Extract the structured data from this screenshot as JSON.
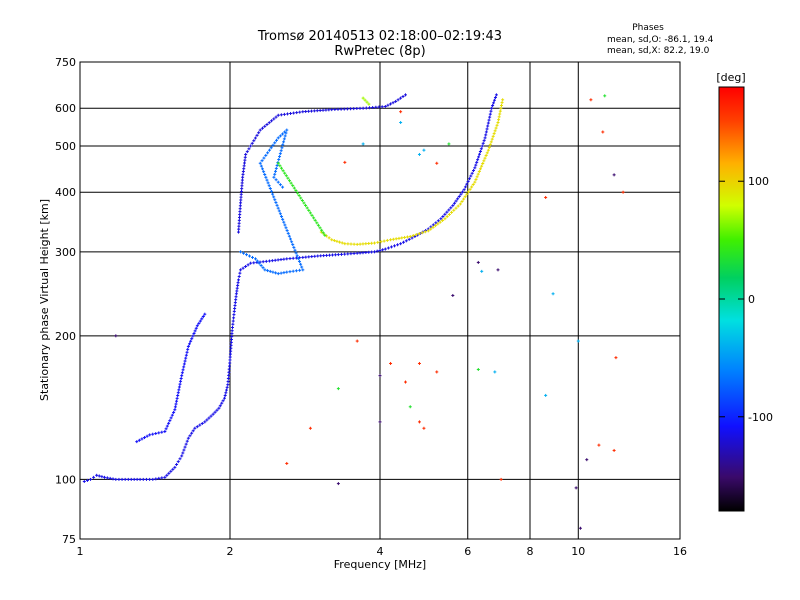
{
  "chart_data": {
    "type": "scatter",
    "title": "Tromsø 20140513 02:18:00–02:19:43",
    "subtitle": "RwPretec (8p)",
    "xlabel": "Frequency [MHz]",
    "ylabel": "Stationary phase Virtual Height [km]",
    "x_scale": "log",
    "y_scale": "log",
    "xlim": [
      1,
      16
    ],
    "ylim": [
      75,
      750
    ],
    "x_ticks": [
      "1",
      "2",
      "4",
      "6",
      "8",
      "10",
      "16"
    ],
    "x_tick_values": [
      1,
      2,
      4,
      6,
      8,
      10,
      16
    ],
    "y_ticks": [
      "75",
      "100",
      "200",
      "300",
      "400",
      "500",
      "600",
      "750"
    ],
    "y_tick_values": [
      75,
      100,
      200,
      300,
      400,
      500,
      600,
      750
    ],
    "grid": true,
    "stats": {
      "header": "Phases",
      "line1": "mean, sd,O: -86.1, 19.4",
      "line2": "mean, sd,X:  82.2, 19.0"
    },
    "colorbar": {
      "label": "[deg]",
      "range": [
        -180,
        180
      ],
      "ticks": [
        "100",
        "0",
        "-100"
      ],
      "tick_values": [
        100,
        0,
        -100
      ]
    },
    "series": [
      {
        "name": "O",
        "colorRef": "phase",
        "segments": [
          {
            "phase": -115,
            "points": [
              [
                1.02,
                99
              ],
              [
                1.05,
                100
              ],
              [
                1.08,
                102
              ],
              [
                1.12,
                101
              ],
              [
                1.18,
                100
              ],
              [
                1.25,
                100
              ],
              [
                1.32,
                100
              ],
              [
                1.4,
                100
              ],
              [
                1.48,
                101
              ],
              [
                1.55,
                106
              ],
              [
                1.6,
                112
              ],
              [
                1.65,
                122
              ],
              [
                1.7,
                128
              ],
              [
                1.78,
                132
              ],
              [
                1.85,
                137
              ],
              [
                1.9,
                141
              ],
              [
                1.95,
                148
              ],
              [
                1.98,
                158
              ],
              [
                2.0,
                178
              ],
              [
                2.02,
                205
              ],
              [
                2.04,
                225
              ],
              [
                2.06,
                245
              ],
              [
                2.08,
                262
              ],
              [
                2.1,
                275
              ],
              [
                2.2,
                284
              ],
              [
                2.4,
                287
              ],
              [
                2.6,
                290
              ],
              [
                2.8,
                292
              ],
              [
                3.0,
                294
              ],
              [
                3.3,
                296
              ],
              [
                3.6,
                298
              ],
              [
                3.9,
                300
              ],
              [
                4.1,
                304
              ],
              [
                4.4,
                312
              ],
              [
                4.7,
                323
              ],
              [
                5.0,
                335
              ],
              [
                5.3,
                352
              ],
              [
                5.6,
                375
              ],
              [
                5.9,
                405
              ],
              [
                6.2,
                450
              ],
              [
                6.5,
                520
              ],
              [
                6.7,
                600
              ],
              [
                6.85,
                640
              ]
            ]
          },
          {
            "phase": -118,
            "points": [
              [
                2.08,
                330
              ],
              [
                2.1,
                380
              ],
              [
                2.12,
                430
              ],
              [
                2.15,
                480
              ],
              [
                2.2,
                500
              ],
              [
                2.3,
                540
              ],
              [
                2.5,
                580
              ],
              [
                2.8,
                590
              ],
              [
                3.2,
                596
              ],
              [
                3.7,
                600
              ],
              [
                4.1,
                605
              ],
              [
                4.3,
                620
              ],
              [
                4.5,
                640
              ]
            ]
          },
          {
            "phase": -110,
            "points": [
              [
                1.3,
                120
              ],
              [
                1.38,
                124
              ],
              [
                1.48,
                126
              ],
              [
                1.55,
                140
              ],
              [
                1.6,
                165
              ],
              [
                1.65,
                190
              ],
              [
                1.72,
                210
              ],
              [
                1.78,
                222
              ]
            ]
          },
          {
            "phase": -70,
            "points": [
              [
                2.1,
                300
              ],
              [
                2.25,
                290
              ],
              [
                2.35,
                275
              ],
              [
                2.5,
                270
              ],
              [
                2.6,
                272
              ],
              [
                2.8,
                275
              ],
              [
                2.3,
                460
              ],
              [
                2.4,
                490
              ],
              [
                2.5,
                520
              ],
              [
                2.6,
                540
              ],
              [
                2.45,
                430
              ],
              [
                2.55,
                410
              ]
            ]
          }
        ]
      },
      {
        "name": "X",
        "colorRef": "phase",
        "segments": [
          {
            "phase": 95,
            "points": [
              [
                3.05,
                330
              ],
              [
                3.2,
                318
              ],
              [
                3.4,
                312
              ],
              [
                3.6,
                311
              ],
              [
                3.9,
                313
              ],
              [
                4.2,
                318
              ],
              [
                4.6,
                323
              ],
              [
                5.0,
                332
              ],
              [
                5.4,
                352
              ],
              [
                5.8,
                378
              ],
              [
                6.2,
                420
              ],
              [
                6.6,
                490
              ],
              [
                6.9,
                560
              ],
              [
                7.05,
                625
              ]
            ]
          },
          {
            "phase": 40,
            "points": [
              [
                2.5,
                460
              ],
              [
                3.1,
                325
              ]
            ]
          },
          {
            "phase": 70,
            "points": [
              [
                3.7,
                630
              ],
              [
                3.8,
                612
              ]
            ]
          }
        ]
      },
      {
        "name": "scattered",
        "colorRef": "phase",
        "segments": [
          {
            "phase": 160,
            "points": [
              [
                3.6,
                195
              ],
              [
                4.2,
                175
              ],
              [
                4.5,
                160
              ],
              [
                4.8,
                175
              ],
              [
                5.2,
                168
              ],
              [
                4.8,
                132
              ],
              [
                4.9,
                128
              ],
              [
                11.0,
                118
              ],
              [
                11.8,
                115
              ],
              [
                11.9,
                180
              ],
              [
                8.6,
                390
              ],
              [
                10.6,
                625
              ],
              [
                11.2,
                535
              ],
              [
                12.3,
                400
              ],
              [
                7.0,
                100.0
              ],
              [
                5.2,
                460
              ],
              [
                4.4,
                590
              ],
              [
                3.4,
                462
              ],
              [
                2.6,
                108
              ],
              [
                2.9,
                128
              ]
            ]
          },
          {
            "phase": 35,
            "points": [
              [
                4.6,
                142
              ],
              [
                6.3,
                170
              ],
              [
                3.3,
                155
              ],
              [
                5.5,
                505
              ],
              [
                11.3,
                637
              ]
            ]
          },
          {
            "phase": -40,
            "points": [
              [
                4.8,
                480
              ],
              [
                4.9,
                490
              ],
              [
                6.4,
                273
              ],
              [
                8.9,
                245
              ],
              [
                6.8,
                168
              ],
              [
                8.6,
                150
              ],
              [
                4.4,
                560
              ],
              [
                3.7,
                505
              ],
              [
                10.0,
                195
              ]
            ]
          },
          {
            "phase": -150,
            "points": [
              [
                1.18,
                200
              ],
              [
                3.3,
                98
              ],
              [
                4.0,
                165
              ],
              [
                4.0,
                132
              ],
              [
                6.9,
                275
              ],
              [
                6.3,
                285
              ],
              [
                5.6,
                243
              ],
              [
                10.4,
                110
              ],
              [
                11.8,
                435
              ],
              [
                9.9,
                96
              ],
              [
                10.1,
                79
              ]
            ]
          }
        ]
      }
    ]
  }
}
